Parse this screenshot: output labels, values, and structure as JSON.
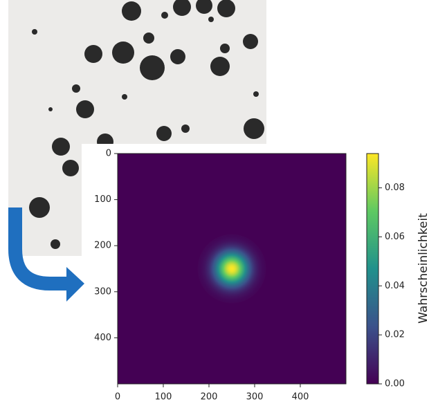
{
  "chart_data": {
    "type": "heatmap",
    "colormap": "viridis",
    "xlim": [
      0,
      500
    ],
    "ylim": [
      500,
      0
    ],
    "xticks": [
      0,
      100,
      200,
      300,
      400
    ],
    "yticks": [
      0,
      100,
      200,
      300,
      400
    ],
    "gaussian": {
      "x": 250,
      "y": 250,
      "sigma": 25,
      "peak": 0.094
    },
    "colorbar": {
      "label": "Wahrscheinlichkeit",
      "lim": [
        0,
        0.094
      ],
      "ticks": [
        {
          "value": 0,
          "label": "0.00"
        },
        {
          "value": 0.02,
          "label": "0.02"
        },
        {
          "value": 0.04,
          "label": "0.04"
        },
        {
          "value": 0.06,
          "label": "0.06"
        },
        {
          "value": 0.08,
          "label": "0.08"
        }
      ]
    }
  }
}
